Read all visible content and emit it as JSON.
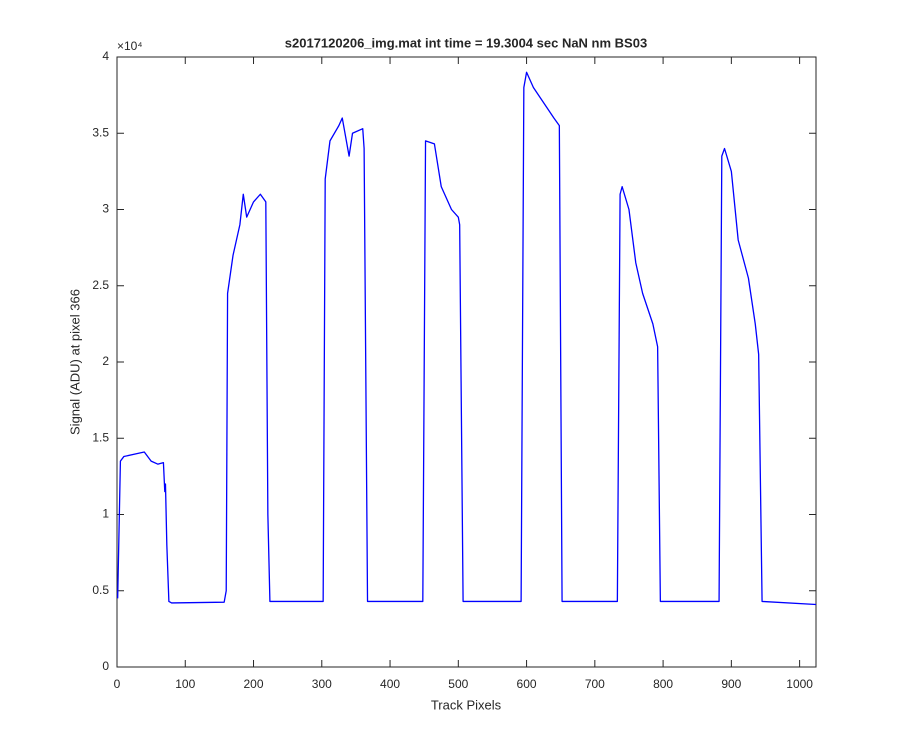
{
  "chart_data": {
    "type": "line",
    "title": "s2017120206_img.mat int time = 19.3004 sec  NaN nm BS03",
    "x_label": "Track Pixels",
    "y_label": "Signal (ADU) at pixel 366",
    "y_exponent_label": "×10⁴",
    "xlim": [
      0,
      1024
    ],
    "xticks": [
      0,
      100,
      200,
      300,
      400,
      500,
      600,
      700,
      800,
      900,
      1000
    ],
    "ylim": [
      0,
      40000
    ],
    "yticks": [
      0,
      {
        "value": 5000,
        "label": "0.5"
      },
      {
        "value": 10000,
        "label": "1"
      },
      {
        "value": 15000,
        "label": "1.5"
      },
      {
        "value": 20000,
        "label": "2"
      },
      {
        "value": 25000,
        "label": "2.5"
      },
      {
        "value": 30000,
        "label": "3"
      },
      {
        "value": 35000,
        "label": "3.5"
      },
      {
        "value": 40000,
        "label": "4"
      }
    ],
    "grid": false,
    "series": [
      {
        "color": "#0000ff",
        "x": [
          1,
          5,
          10,
          30,
          40,
          50,
          60,
          68,
          70,
          71,
          73,
          76,
          80,
          157,
          160,
          162,
          170,
          180,
          185,
          190,
          200,
          210,
          218,
          221,
          224,
          302,
          305,
          312,
          325,
          330,
          340,
          345,
          360,
          362,
          367,
          448,
          452,
          465,
          475,
          490,
          500,
          502,
          507,
          592,
          596,
          600,
          610,
          625,
          640,
          648,
          652,
          733,
          737,
          740,
          750,
          760,
          770,
          785,
          792,
          796,
          882,
          886,
          890,
          900,
          910,
          925,
          935,
          940,
          945,
          1024
        ],
        "values": [
          4500,
          13500,
          13800,
          14000,
          14100,
          13500,
          13300,
          13400,
          11500,
          12000,
          8000,
          4300,
          4200,
          4250,
          5000,
          24500,
          27000,
          29000,
          31000,
          29500,
          30500,
          31000,
          30500,
          10000,
          4300,
          4300,
          32000,
          34500,
          35500,
          36000,
          33500,
          35000,
          35300,
          34000,
          4300,
          4300,
          34500,
          34300,
          31500,
          30000,
          29500,
          29000,
          4300,
          4300,
          38000,
          39000,
          38000,
          37000,
          36000,
          35500,
          4300,
          4300,
          31000,
          31500,
          30000,
          26500,
          24500,
          22500,
          21000,
          4300,
          4300,
          33500,
          34000,
          32500,
          28000,
          25500,
          22500,
          20500,
          4300,
          4100
        ]
      }
    ]
  }
}
